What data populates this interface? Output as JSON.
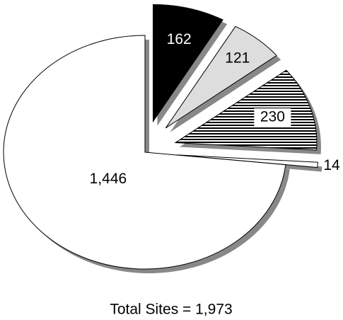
{
  "chart_data": {
    "type": "pie",
    "title": "Total Sites = 1,973",
    "values": [
      162,
      121,
      230,
      14,
      1446
    ],
    "value_labels": [
      "162",
      "121",
      "230",
      "14",
      "1,446"
    ],
    "colors": [
      "#000000",
      "#dddddd",
      "hatch",
      "#ffffff",
      "#ffffff"
    ]
  }
}
